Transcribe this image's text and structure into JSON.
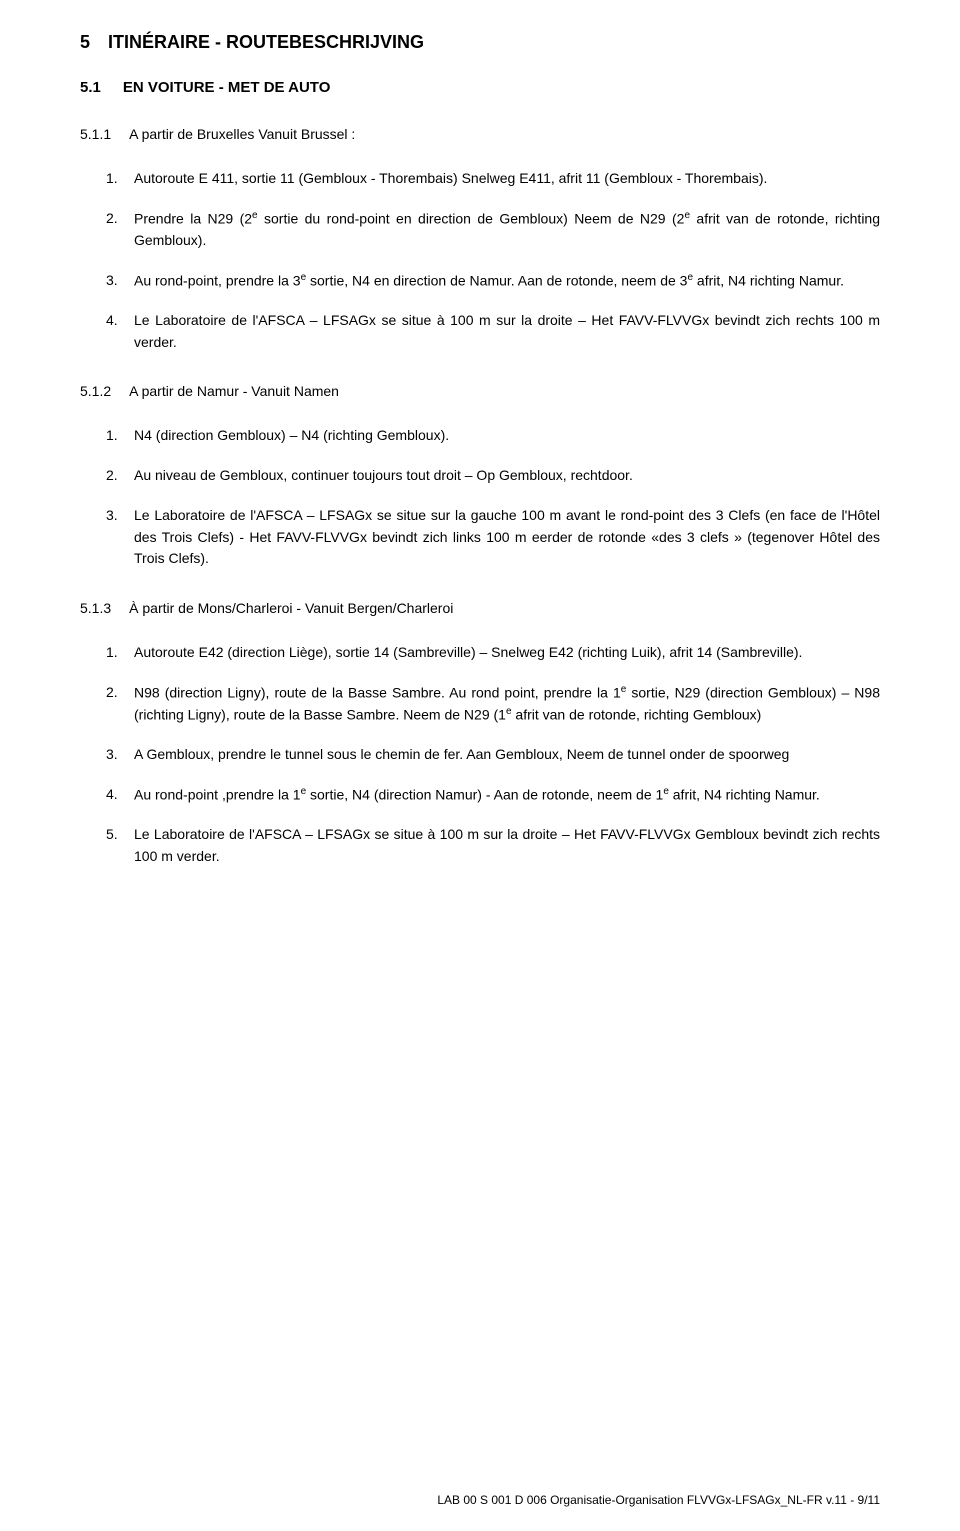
{
  "colors": {
    "text": "#000000",
    "background": "#ffffff"
  },
  "typography": {
    "h1_fontsize_pt": 14,
    "h2_fontsize_pt": 11,
    "body_fontsize_pt": 10.5,
    "footer_fontsize_pt": 9,
    "font_family": "Arial"
  },
  "h1": {
    "num": "5",
    "title": "ITINÉRAIRE - ROUTEBESCHRIJVING"
  },
  "h2": {
    "num": "5.1",
    "title": "EN VOITURE - MET DE AUTO"
  },
  "sections": [
    {
      "num": "5.1.1",
      "title": "A partir de Bruxelles Vanuit Brussel :",
      "items": [
        {
          "n": "1.",
          "html": "Autoroute E 411, sortie 11 (Gembloux - Thorembais) Snelweg E411, afrit 11 (Gembloux - Thorembais)."
        },
        {
          "n": "2.",
          "html": "Prendre la N29 (2<sup>e</sup> sortie du rond-point en direction de Gembloux) Neem de N29 (2<sup>e</sup> afrit van de rotonde, richting Gembloux)."
        },
        {
          "n": "3.",
          "html": "Au rond-point, prendre la 3<sup>e</sup> sortie, N4 en direction de Namur. Aan de rotonde, neem de 3<sup>e</sup> afrit, N4 richting Namur."
        },
        {
          "n": "4.",
          "html": "Le Laboratoire de l'AFSCA – LFSAGx se situe à 100 m sur la droite – Het FAVV-FLVVGx bevindt zich rechts 100 m verder."
        }
      ]
    },
    {
      "num": "5.1.2",
      "title": "A partir de Namur - Vanuit Namen",
      "items": [
        {
          "n": "1.",
          "html": "N4 (direction Gembloux) – N4 (richting Gembloux)."
        },
        {
          "n": "2.",
          "html": "Au niveau de Gembloux, continuer toujours tout droit – Op Gembloux, rechtdoor."
        },
        {
          "n": "3.",
          "html": "Le Laboratoire de l'AFSCA – LFSAGx se situe sur la gauche 100 m avant le rond-point des 3 Clefs (en face de l'Hôtel des Trois Clefs) - Het FAVV-FLVVGx bevindt zich links 100 m eerder de rotonde «des 3 clefs » (tegenover Hôtel des Trois Clefs)."
        }
      ]
    },
    {
      "num": "5.1.3",
      "title": "À partir de Mons/Charleroi - Vanuit Bergen/Charleroi",
      "items": [
        {
          "n": "1.",
          "html": "Autoroute E42 (direction Liège), sortie 14 (Sambreville) – Snelweg E42 (richting Luik), afrit 14 (Sambreville)."
        },
        {
          "n": "2.",
          "html": "N98 (direction Ligny), route de la Basse Sambre. Au rond point, prendre la 1<sup>e</sup> sortie, N29 (direction Gembloux) – N98 (richting Ligny), route de la Basse Sambre. Neem de N29 (1<sup>e</sup> afrit van de rotonde, richting Gembloux)"
        },
        {
          "n": "3.",
          "html": "A Gembloux, prendre le tunnel sous le chemin de fer. Aan Gembloux, Neem de tunnel onder de spoorweg"
        },
        {
          "n": "4.",
          "html": "Au rond-point ,prendre la 1<sup>e</sup> sortie, N4 (direction Namur) - Aan de rotonde, neem de 1<sup>e</sup> afrit, N4 richting Namur."
        },
        {
          "n": "5.",
          "html": "Le Laboratoire de l'AFSCA – LFSAGx se situe à 100 m sur la droite – Het FAVV-FLVVGx Gembloux bevindt zich rechts 100 m verder."
        }
      ]
    }
  ],
  "footer": "LAB 00 S 001 D 006 Organisatie-Organisation FLVVGx-LFSAGx_NL-FR v.11 - 9/11"
}
